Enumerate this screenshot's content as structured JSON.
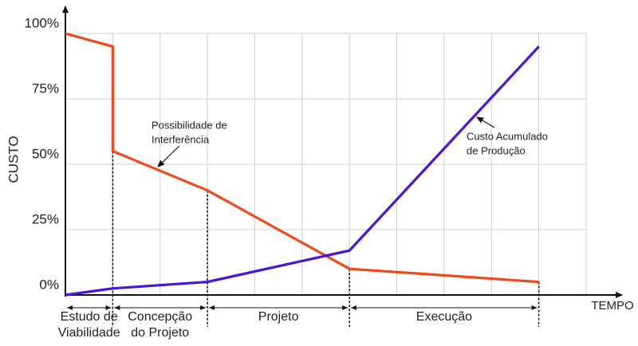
{
  "chart_data": {
    "type": "line",
    "y_label": "CUSTO",
    "x_label": "TEMPO",
    "xlim": [
      0,
      11
    ],
    "xticks": [
      0,
      1,
      2,
      3,
      4,
      5,
      6,
      7,
      8,
      9,
      10,
      11
    ],
    "ylim": [
      0,
      100
    ],
    "yticks": [
      {
        "value": 0,
        "label": "0%"
      },
      {
        "value": 25,
        "label": "25%"
      },
      {
        "value": 50,
        "label": "50%"
      },
      {
        "value": 75,
        "label": "75%"
      },
      {
        "value": 100,
        "label": "100%"
      }
    ],
    "grid": true,
    "series": [
      {
        "name": [
          "Possibilidade de",
          "Interferência"
        ],
        "color": "#ee4a1e",
        "x": [
          0,
          1,
          1,
          3,
          6,
          10
        ],
        "values": [
          100,
          95,
          55,
          40,
          10,
          5
        ]
      },
      {
        "name": [
          "Custo Acumulado",
          "de Produção"
        ],
        "color": "#4b12e0",
        "x": [
          0,
          1,
          3,
          6,
          10
        ],
        "values": [
          0,
          2.5,
          5,
          17,
          95
        ]
      }
    ],
    "phases": [
      {
        "label": [
          "Estudo de",
          "Viabilidade"
        ],
        "end": 1
      },
      {
        "label": [
          "Concepção",
          "do Projeto"
        ],
        "end": 3
      },
      {
        "label": [
          "Projeto"
        ],
        "end": 6
      },
      {
        "label": [
          "Execução"
        ],
        "end": 10
      }
    ]
  }
}
